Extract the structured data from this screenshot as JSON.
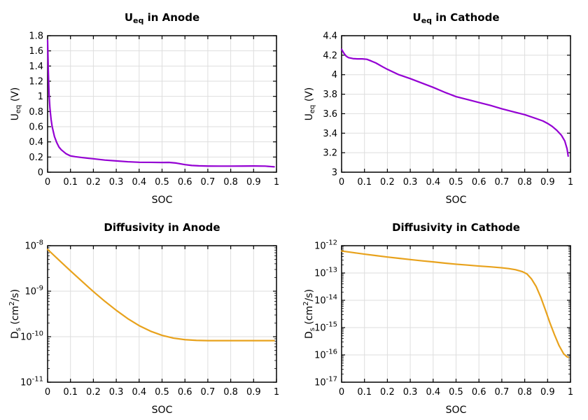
{
  "figure": {
    "background": "#ffffff",
    "grid_color": "#dedede",
    "axis_color": "#000000"
  },
  "chart_data": [
    {
      "type": "line",
      "name": "ueq-anode",
      "color": "#9400D3",
      "title_parts": [
        {
          "t": "U"
        },
        {
          "t": "eq",
          "s": "sub"
        },
        {
          "t": " in Anode"
        }
      ],
      "xlabel": "SOC",
      "ylabel_parts": [
        {
          "t": "U"
        },
        {
          "t": "eq",
          "s": "sub"
        },
        {
          "t": " (V)"
        }
      ],
      "x_axis": {
        "min": 0,
        "max": 1,
        "ticks": [
          {
            "v": 0,
            "l": "0"
          },
          {
            "v": 0.1,
            "l": "0.1"
          },
          {
            "v": 0.2,
            "l": "0.2"
          },
          {
            "v": 0.3,
            "l": "0.3"
          },
          {
            "v": 0.4,
            "l": "0.4"
          },
          {
            "v": 0.5,
            "l": "0.5"
          },
          {
            "v": 0.6,
            "l": "0.6"
          },
          {
            "v": 0.7,
            "l": "0.7"
          },
          {
            "v": 0.8,
            "l": "0.8"
          },
          {
            "v": 0.9,
            "l": "0.9"
          },
          {
            "v": 1,
            "l": "1"
          }
        ]
      },
      "y_axis": {
        "scale": "linear",
        "min": 0,
        "max": 1.8,
        "ticks": [
          {
            "v": 0,
            "l": "0"
          },
          {
            "v": 0.2,
            "l": "0.2"
          },
          {
            "v": 0.4,
            "l": "0.4"
          },
          {
            "v": 0.6,
            "l": "0.6"
          },
          {
            "v": 0.8,
            "l": "0.8"
          },
          {
            "v": 1,
            "l": "1"
          },
          {
            "v": 1.2,
            "l": "1.2"
          },
          {
            "v": 1.4,
            "l": "1.4"
          },
          {
            "v": 1.6,
            "l": "1.6"
          },
          {
            "v": 1.8,
            "l": "1.8"
          }
        ]
      },
      "x": [
        0,
        0.003,
        0.006,
        0.01,
        0.015,
        0.02,
        0.03,
        0.04,
        0.05,
        0.06,
        0.08,
        0.1,
        0.12,
        0.15,
        0.18,
        0.2,
        0.25,
        0.3,
        0.35,
        0.4,
        0.45,
        0.5,
        0.53,
        0.56,
        0.6,
        0.63,
        0.66,
        0.7,
        0.75,
        0.8,
        0.85,
        0.9,
        0.95,
        0.99
      ],
      "y": [
        1.74,
        1.35,
        1.05,
        0.85,
        0.7,
        0.6,
        0.47,
        0.39,
        0.33,
        0.295,
        0.245,
        0.215,
        0.205,
        0.193,
        0.183,
        0.177,
        0.16,
        0.149,
        0.138,
        0.131,
        0.13,
        0.128,
        0.129,
        0.121,
        0.1,
        0.089,
        0.084,
        0.081,
        0.08,
        0.08,
        0.081,
        0.082,
        0.08,
        0.071
      ]
    },
    {
      "type": "line",
      "name": "ueq-cathode",
      "color": "#9400D3",
      "title_parts": [
        {
          "t": "U"
        },
        {
          "t": "eq",
          "s": "sub"
        },
        {
          "t": " in Cathode"
        }
      ],
      "xlabel": "SOC",
      "ylabel_parts": [
        {
          "t": "U"
        },
        {
          "t": "eq",
          "s": "sub"
        },
        {
          "t": " (V)"
        }
      ],
      "x_axis": {
        "min": 0,
        "max": 1,
        "ticks": [
          {
            "v": 0,
            "l": "0"
          },
          {
            "v": 0.1,
            "l": "0.1"
          },
          {
            "v": 0.2,
            "l": "0.2"
          },
          {
            "v": 0.3,
            "l": "0.3"
          },
          {
            "v": 0.4,
            "l": "0.4"
          },
          {
            "v": 0.5,
            "l": "0.5"
          },
          {
            "v": 0.6,
            "l": "0.6"
          },
          {
            "v": 0.7,
            "l": "0.7"
          },
          {
            "v": 0.8,
            "l": "0.8"
          },
          {
            "v": 0.9,
            "l": "0.9"
          },
          {
            "v": 1,
            "l": "1"
          }
        ]
      },
      "y_axis": {
        "scale": "linear",
        "min": 3,
        "max": 4.4,
        "ticks": [
          {
            "v": 3,
            "l": "3"
          },
          {
            "v": 3.2,
            "l": "3.2"
          },
          {
            "v": 3.4,
            "l": "3.4"
          },
          {
            "v": 3.6,
            "l": "3.6"
          },
          {
            "v": 3.8,
            "l": "3.8"
          },
          {
            "v": 4,
            "l": "4"
          },
          {
            "v": 4.2,
            "l": "4.2"
          },
          {
            "v": 4.4,
            "l": "4.4"
          }
        ]
      },
      "x": [
        0,
        0.01,
        0.02,
        0.03,
        0.05,
        0.07,
        0.09,
        0.11,
        0.13,
        0.15,
        0.18,
        0.2,
        0.25,
        0.3,
        0.35,
        0.4,
        0.45,
        0.5,
        0.55,
        0.6,
        0.65,
        0.7,
        0.75,
        0.8,
        0.85,
        0.88,
        0.9,
        0.92,
        0.94,
        0.96,
        0.975,
        0.985,
        0.99
      ],
      "y": [
        4.26,
        4.22,
        4.19,
        4.175,
        4.165,
        4.162,
        4.162,
        4.158,
        4.14,
        4.12,
        4.08,
        4.055,
        4.0,
        3.96,
        3.915,
        3.87,
        3.82,
        3.775,
        3.745,
        3.715,
        3.685,
        3.65,
        3.62,
        3.59,
        3.55,
        3.525,
        3.5,
        3.47,
        3.43,
        3.38,
        3.32,
        3.24,
        3.165
      ]
    },
    {
      "type": "line",
      "name": "diffusivity-anode",
      "color": "#E8A21C",
      "title_parts": [
        {
          "t": "Diffusivity in Anode"
        }
      ],
      "xlabel": "SOC",
      "ylabel_parts": [
        {
          "t": "D"
        },
        {
          "t": "s",
          "s": "sub"
        },
        {
          "t": " (cm"
        },
        {
          "t": "2",
          "s": "sup"
        },
        {
          "t": "/s)"
        }
      ],
      "x_axis": {
        "min": 0,
        "max": 1,
        "ticks": [
          {
            "v": 0,
            "l": "0"
          },
          {
            "v": 0.1,
            "l": "0.1"
          },
          {
            "v": 0.2,
            "l": "0.2"
          },
          {
            "v": 0.3,
            "l": "0.3"
          },
          {
            "v": 0.4,
            "l": "0.4"
          },
          {
            "v": 0.5,
            "l": "0.5"
          },
          {
            "v": 0.6,
            "l": "0.6"
          },
          {
            "v": 0.7,
            "l": "0.7"
          },
          {
            "v": 0.8,
            "l": "0.8"
          },
          {
            "v": 0.9,
            "l": "0.9"
          },
          {
            "v": 1,
            "l": "1"
          }
        ]
      },
      "y_axis": {
        "scale": "log",
        "min": -11,
        "max": -8,
        "ticks": [
          {
            "v": -11,
            "exp": "-11"
          },
          {
            "v": -10,
            "exp": "-10"
          },
          {
            "v": -9,
            "exp": "-9"
          },
          {
            "v": -8,
            "exp": "-8"
          }
        ]
      },
      "x": [
        0,
        0.05,
        0.1,
        0.15,
        0.2,
        0.25,
        0.3,
        0.35,
        0.4,
        0.45,
        0.5,
        0.55,
        0.6,
        0.65,
        0.7,
        0.75,
        0.8,
        0.85,
        0.9,
        0.95,
        0.99
      ],
      "y": [
        8.3e-09,
        4.8e-09,
        2.8e-09,
        1.65e-09,
        9.8e-10,
        6e-10,
        3.8e-10,
        2.5e-10,
        1.75e-10,
        1.32e-10,
        1.07e-10,
        9.3e-11,
        8.6e-11,
        8.3e-11,
        8.2e-11,
        8.2e-11,
        8.2e-11,
        8.2e-11,
        8.2e-11,
        8.2e-11,
        8.2e-11
      ]
    },
    {
      "type": "line",
      "name": "diffusivity-cathode",
      "color": "#E8A21C",
      "title_parts": [
        {
          "t": "Diffusivity in Cathode"
        }
      ],
      "xlabel": "SOC",
      "ylabel_parts": [
        {
          "t": "D"
        },
        {
          "t": "s",
          "s": "sub"
        },
        {
          "t": " (cm"
        },
        {
          "t": "2",
          "s": "sup"
        },
        {
          "t": "/s)"
        }
      ],
      "x_axis": {
        "min": 0,
        "max": 1,
        "ticks": [
          {
            "v": 0,
            "l": "0"
          },
          {
            "v": 0.1,
            "l": "0.1"
          },
          {
            "v": 0.2,
            "l": "0.2"
          },
          {
            "v": 0.3,
            "l": "0.3"
          },
          {
            "v": 0.4,
            "l": "0.4"
          },
          {
            "v": 0.5,
            "l": "0.5"
          },
          {
            "v": 0.6,
            "l": "0.6"
          },
          {
            "v": 0.7,
            "l": "0.7"
          },
          {
            "v": 0.8,
            "l": "0.8"
          },
          {
            "v": 0.9,
            "l": "0.9"
          },
          {
            "v": 1,
            "l": "1"
          }
        ]
      },
      "y_axis": {
        "scale": "log",
        "min": -17,
        "max": -12,
        "ticks": [
          {
            "v": -17,
            "exp": "-17"
          },
          {
            "v": -16,
            "exp": "-16"
          },
          {
            "v": -15,
            "exp": "-15"
          },
          {
            "v": -14,
            "exp": "-14"
          },
          {
            "v": -13,
            "exp": "-13"
          },
          {
            "v": -12,
            "exp": "-12"
          }
        ]
      },
      "x": [
        0,
        0.05,
        0.1,
        0.15,
        0.2,
        0.25,
        0.3,
        0.35,
        0.4,
        0.45,
        0.5,
        0.55,
        0.6,
        0.65,
        0.7,
        0.73,
        0.76,
        0.79,
        0.81,
        0.83,
        0.85,
        0.87,
        0.89,
        0.91,
        0.93,
        0.95,
        0.97,
        0.985,
        0.99
      ],
      "y": [
        6.4e-13,
        5.6e-13,
        4.9e-13,
        4.35e-13,
        3.85e-13,
        3.45e-13,
        3.1e-13,
        2.8e-13,
        2.55e-13,
        2.3e-13,
        2.1e-13,
        1.95e-13,
        1.8e-13,
        1.68e-13,
        1.55e-13,
        1.45e-13,
        1.32e-13,
        1.12e-13,
        9.2e-14,
        6e-14,
        3.2e-14,
        1.3e-14,
        4.5e-15,
        1.5e-15,
        5.5e-16,
        2.2e-16,
        1.1e-16,
        8.5e-17,
        8.2e-17
      ]
    }
  ]
}
